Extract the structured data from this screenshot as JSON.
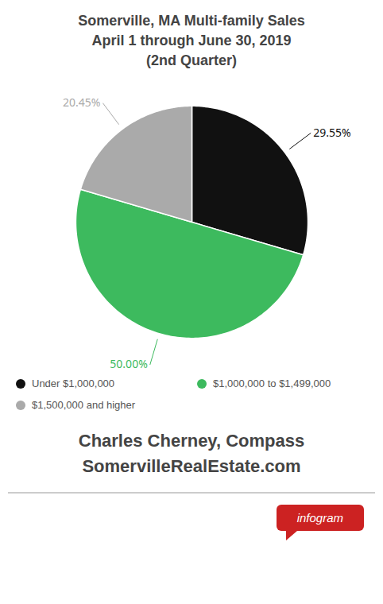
{
  "chart_data": {
    "type": "pie",
    "title": "Somerville, MA Multi-family Sales",
    "subtitle": [
      "April 1 through June 30, 2019",
      "(2nd Quarter)"
    ],
    "categories": [
      "Under $1,000,000",
      "$1,000,000 to $1,499,000",
      "$1,500,000 and higher"
    ],
    "values": [
      29.55,
      50.0,
      20.45
    ],
    "value_labels": [
      "29.55%",
      "50.00%",
      "20.45%"
    ],
    "colors": [
      "#111111",
      "#3dba5e",
      "#aaaaaa"
    ],
    "data_labels": true,
    "legend": "bottom",
    "annotations": [
      "Charles Cherney, Compass",
      "SomervilleRealEstate.com",
      "infogram"
    ]
  }
}
